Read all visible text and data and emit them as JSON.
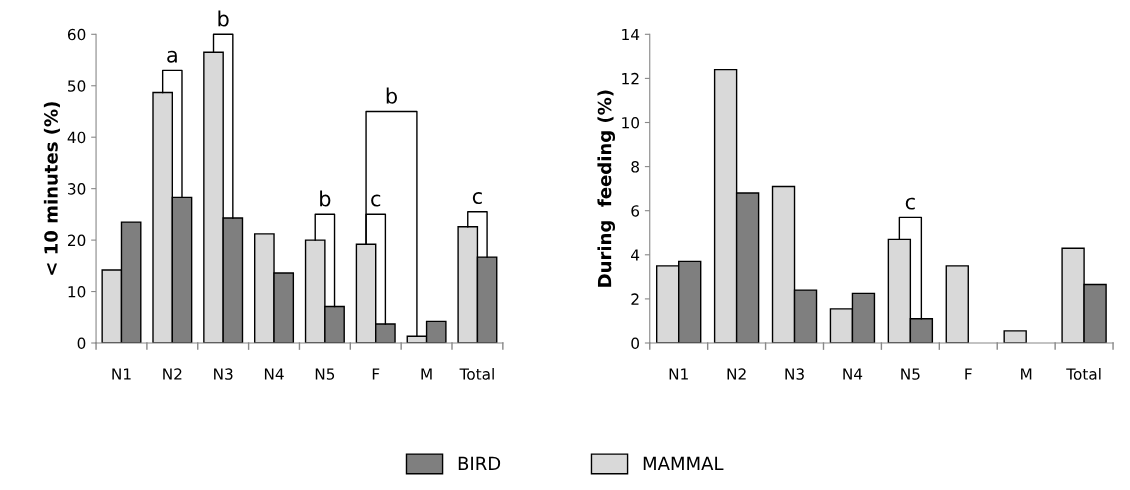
{
  "chart_data": [
    {
      "type": "bar",
      "ylabel": "< 10 minutes (%)",
      "categories": [
        "N1",
        "N2",
        "N3",
        "N4",
        "N5",
        "F",
        "M",
        "Total"
      ],
      "series": [
        {
          "name": "MAMMAL",
          "color": "#d9d9d9",
          "values": [
            14.2,
            48.7,
            56.5,
            21.2,
            20.0,
            19.2,
            1.3,
            22.6
          ]
        },
        {
          "name": "BIRD",
          "color": "#7f7f7f",
          "values": [
            23.5,
            28.3,
            24.3,
            13.6,
            7.1,
            3.7,
            4.2,
            16.7
          ]
        }
      ],
      "ylim": [
        0,
        60
      ],
      "yticks": [
        0,
        10,
        20,
        30,
        40,
        50,
        60
      ],
      "grid": false,
      "legend": "bottom",
      "annotations": [
        "a",
        "b",
        "b",
        "c",
        "b",
        {
          "text": "c",
          "y": 22.6
        }
      ]
    },
    {
      "type": "bar",
      "ylabel": "During  feeding (%)",
      "categories": [
        "N1",
        "N2",
        "N3",
        "N4",
        "N5",
        "F",
        "M",
        "Total"
      ],
      "series": [
        {
          "color": "#d9d9d9",
          "values": [
            3.5,
            12.4,
            7.1,
            1.55,
            4.7,
            3.5,
            0.55,
            4.3
          ]
        },
        {
          "color": "#7f7f7f",
          "values": [
            3.7,
            6.8,
            2.4,
            2.25,
            1.1,
            null,
            null,
            2.65
          ]
        }
      ],
      "ylim": [
        0,
        14
      ],
      "yticks": [
        0,
        2,
        4,
        6,
        8,
        10,
        12,
        14
      ],
      "grid": false,
      "annotations": [
        "c"
      ]
    }
  ]
}
